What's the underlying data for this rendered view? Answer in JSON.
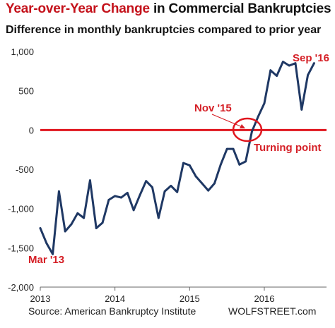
{
  "header": {
    "title_highlight": "Year-over-Year Change",
    "title_rest": " in Commercial Bankruptcies",
    "subtitle": "Difference in monthly bankruptcies compared to prior year"
  },
  "footer": {
    "source": "Source: American Bankruptcy Institute",
    "brand": "WOLFSTREET.com"
  },
  "colors": {
    "line": "#1f3864",
    "zero_line": "#e0161e",
    "annotation": "#d51f26"
  },
  "chart_data": {
    "type": "line",
    "title": "Year-over-Year Change in Commercial Bankruptcies",
    "subtitle": "Difference in monthly bankruptcies compared to prior year",
    "xlabel": "",
    "ylabel": "",
    "ylim": [
      -2000,
      1000
    ],
    "xlim": [
      2013,
      2016.833
    ],
    "yticks": [
      {
        "value": 1000,
        "label": "1,000"
      },
      {
        "value": 500,
        "label": "500"
      },
      {
        "value": 0,
        "label": "0"
      },
      {
        "value": -500,
        "label": "-500"
      },
      {
        "value": -1000,
        "label": "-1,000"
      },
      {
        "value": -1500,
        "label": "-1,500"
      },
      {
        "value": -2000,
        "label": "-2,000"
      }
    ],
    "xticks": [
      {
        "value": 2013,
        "label": "2013"
      },
      {
        "value": 2014,
        "label": "2014"
      },
      {
        "value": 2015,
        "label": "2015"
      },
      {
        "value": 2016,
        "label": "2016"
      }
    ],
    "grid": false,
    "reference_line": {
      "y": 0
    },
    "series": [
      {
        "x": [
          "2013-01",
          "2013-02",
          "2013-03",
          "2013-04",
          "2013-05",
          "2013-06",
          "2013-07",
          "2013-08",
          "2013-09",
          "2013-10",
          "2013-11",
          "2013-12",
          "2014-01",
          "2014-02",
          "2014-03",
          "2014-04",
          "2014-05",
          "2014-06",
          "2014-07",
          "2014-08",
          "2014-09",
          "2014-10",
          "2014-11",
          "2014-12",
          "2015-01",
          "2015-02",
          "2015-03",
          "2015-04",
          "2015-05",
          "2015-06",
          "2015-07",
          "2015-08",
          "2015-09",
          "2015-10",
          "2015-11",
          "2015-12",
          "2016-01",
          "2016-02",
          "2016-03",
          "2016-04",
          "2016-05",
          "2016-06",
          "2016-07",
          "2016-08",
          "2016-09"
        ],
        "values": [
          -1250,
          -1440,
          -1580,
          -780,
          -1290,
          -1200,
          -1060,
          -1120,
          -640,
          -1250,
          -1180,
          -890,
          -840,
          -860,
          -800,
          -1020,
          -830,
          -650,
          -730,
          -1120,
          -780,
          -710,
          -790,
          -420,
          -450,
          -590,
          -680,
          -770,
          -680,
          -440,
          -240,
          -240,
          -440,
          -400,
          -20,
          170,
          340,
          760,
          690,
          870,
          820,
          850,
          260,
          700,
          850
        ]
      }
    ],
    "annotations": [
      {
        "text": "Sep '16",
        "at": "2016-09"
      },
      {
        "text": "Nov '15",
        "at": "2015-11"
      },
      {
        "text": "Turning point",
        "at": "2015-11"
      },
      {
        "text": "Mar '13",
        "at": "2013-03"
      }
    ]
  }
}
